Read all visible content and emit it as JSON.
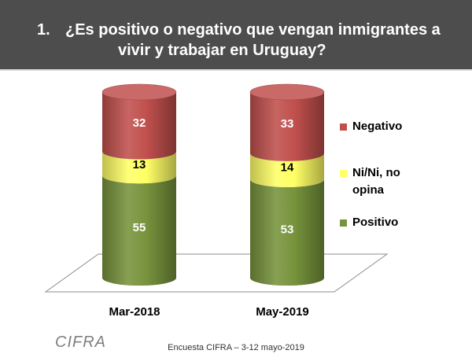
{
  "header": {
    "number": "1.",
    "title_line1": "¿Es positivo o negativo que vengan inmigrantes a",
    "title_line2": "vivir y trabajar en Uruguay?"
  },
  "chart_data": {
    "type": "bar",
    "stacked": true,
    "style": "3d-cylinder",
    "categories": [
      "Mar-2018",
      "May-2019"
    ],
    "series": [
      {
        "name": "Positivo",
        "values": [
          55,
          53
        ],
        "color": "#77933c"
      },
      {
        "name": "Ni/Ni, no opina",
        "values": [
          13,
          14
        ],
        "color": "#ffff66"
      },
      {
        "name": "Negativo",
        "values": [
          32,
          33
        ],
        "color": "#c0504d"
      }
    ],
    "legend_order": [
      "Negativo",
      "Ni/Ni, no opina",
      "Positivo"
    ],
    "legend_position": "right",
    "ylim": [
      0,
      100
    ]
  },
  "legend": {
    "negativo": "Negativo",
    "nini_line1": "Ni/Ni, no",
    "nini_line2": "opina",
    "positivo": "Positivo"
  },
  "colors": {
    "header_bg": "#4d4d4d",
    "negativo": "#c0504d",
    "nini": "#ffff66",
    "positivo": "#77933c"
  },
  "footer": {
    "logo": "CIFRA",
    "note": "Encuesta CIFRA – 3-12 mayo-2019"
  }
}
